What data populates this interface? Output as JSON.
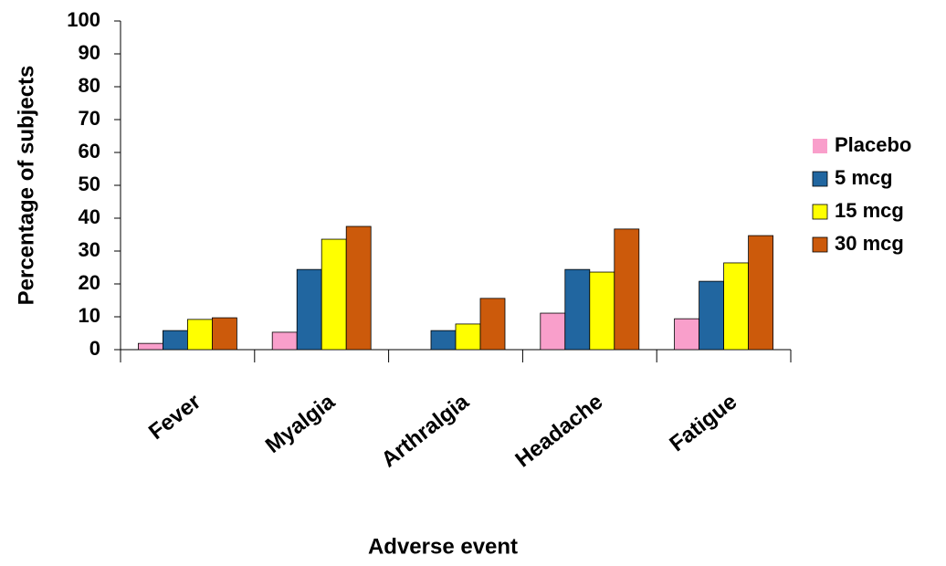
{
  "chart_data": {
    "type": "bar",
    "categories": [
      "Fever",
      "Myalgia",
      "Arthralgia",
      "Headache",
      "Fatigue"
    ],
    "series": [
      {
        "name": "Placebo",
        "color": "#f99fcb",
        "values": [
          1.9,
          5.3,
          0,
          11.1,
          9.4
        ]
      },
      {
        "name": "5 mcg",
        "color": "#2166a0",
        "values": [
          5.8,
          24.4,
          5.8,
          24.4,
          20.8
        ]
      },
      {
        "name": "15 mcg",
        "color": "#ffff00",
        "values": [
          9.2,
          33.6,
          7.8,
          23.6,
          26.4
        ]
      },
      {
        "name": "30 mcg",
        "color": "#cc5a0b",
        "values": [
          9.7,
          37.5,
          15.6,
          36.7,
          34.7
        ]
      }
    ],
    "x_label": "Adverse event",
    "y_label": "Percentage of subjects",
    "ylim": [
      0,
      100
    ],
    "yticks": [
      0,
      10,
      20,
      30,
      40,
      50,
      60,
      70,
      80,
      90,
      100
    ],
    "grid": false,
    "legend": "right"
  }
}
